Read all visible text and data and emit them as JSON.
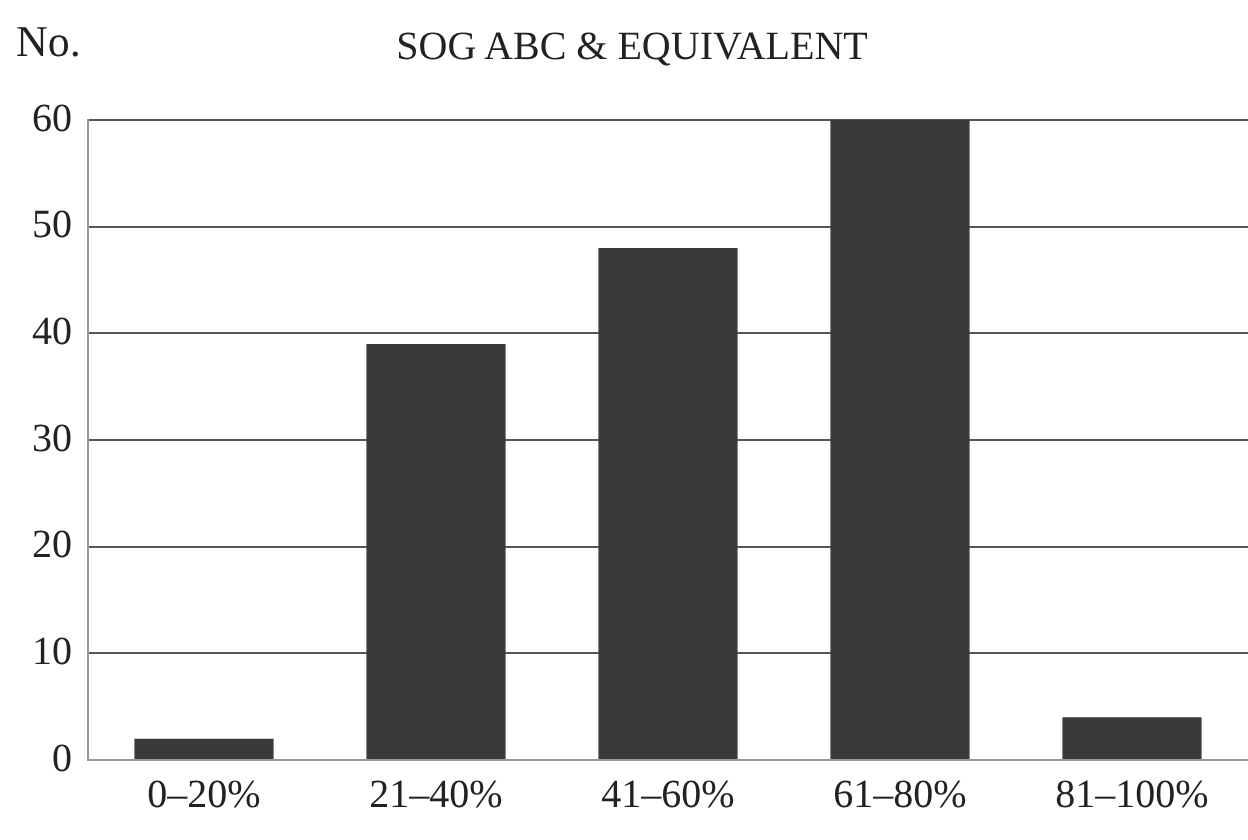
{
  "chart_data": {
    "type": "bar",
    "title": "SOG ABC & EQUIVALENT",
    "ylabel": "No.",
    "categories": [
      "0–20%",
      "21–40%",
      "41–60%",
      "61–80%",
      "81–100%"
    ],
    "values": [
      2,
      39,
      48,
      60,
      4
    ],
    "color": "#3a3a3a",
    "ylim": [
      0,
      60
    ],
    "yticks": [
      0,
      10,
      20,
      30,
      40,
      50,
      60
    ],
    "grid": "y",
    "legend": false
  }
}
